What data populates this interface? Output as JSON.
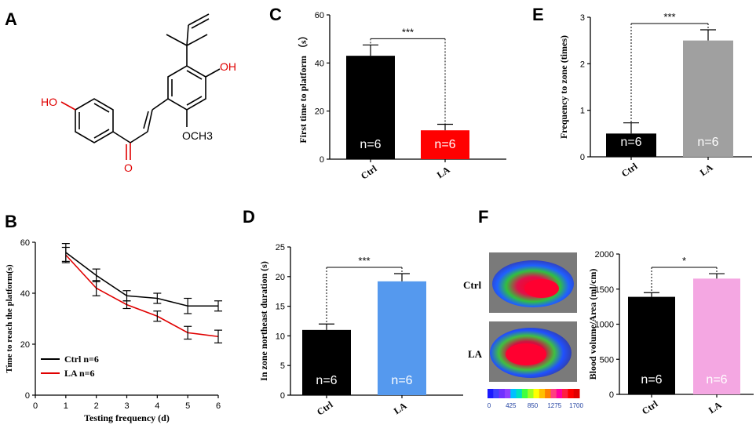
{
  "panels": {
    "A": "A",
    "B": "B",
    "C": "C",
    "D": "D",
    "E": "E",
    "F": "F"
  },
  "structure": {
    "ho": "HO",
    "oh": "OH",
    "och3": "OCH3",
    "o": "O",
    "colors": {
      "bond": "#000000",
      "hetero": "#e00000"
    }
  },
  "chart_data": [
    {
      "id": "B",
      "type": "line",
      "xlabel": "Testing frequency  (d)",
      "ylabel": "Time to reach the platform(s)",
      "x": [
        1,
        2,
        3,
        4,
        5,
        6
      ],
      "xlim": [
        0,
        6
      ],
      "ylim": [
        0,
        60
      ],
      "xticks": [
        0,
        1,
        2,
        3,
        4,
        5,
        6
      ],
      "yticks": [
        0,
        20,
        40,
        60
      ],
      "legend_position": "bottom-left",
      "series": [
        {
          "name": "Ctrl n=6",
          "color": "#000000",
          "values": [
            56,
            47,
            39,
            38,
            35,
            35
          ],
          "errors": [
            3.5,
            2.5,
            2,
            2,
            3,
            2
          ]
        },
        {
          "name": "LA    n=6",
          "color": "#e00000",
          "values": [
            55,
            42,
            35.5,
            31,
            24.5,
            23
          ],
          "errors": [
            3,
            3,
            1.5,
            2,
            2.5,
            2.5
          ]
        }
      ]
    },
    {
      "id": "C",
      "type": "bar",
      "ylabel": "First time to platform （s）",
      "categories": [
        "Ctrl",
        "LA"
      ],
      "values": [
        43,
        12
      ],
      "errors": [
        4.5,
        2.5
      ],
      "colors": [
        "#000000",
        "#ff0000"
      ],
      "n_labels": [
        "n=6",
        "n=6"
      ],
      "ylim": [
        0,
        60
      ],
      "yticks": [
        0,
        20,
        40,
        60
      ],
      "significance": "***"
    },
    {
      "id": "D",
      "type": "bar",
      "ylabel": "In zone northeast duration (s)",
      "categories": [
        "Ctrl",
        "LA"
      ],
      "values": [
        11,
        19.2
      ],
      "errors": [
        1,
        1.3
      ],
      "colors": [
        "#000000",
        "#5599ee"
      ],
      "n_labels": [
        "n=6",
        "n=6"
      ],
      "ylim": [
        0,
        25
      ],
      "yticks": [
        0,
        5,
        10,
        15,
        20,
        25
      ],
      "significance": "***"
    },
    {
      "id": "E",
      "type": "bar",
      "ylabel": "Frequency to zone (times)",
      "categories": [
        "Ctrl",
        "LA"
      ],
      "values": [
        0.5,
        2.5
      ],
      "errors": [
        0.23,
        0.23
      ],
      "colors": [
        "#000000",
        "#a0a0a0"
      ],
      "n_labels": [
        "n=6",
        "n=6"
      ],
      "ylim": [
        0,
        3
      ],
      "yticks": [
        0,
        1,
        2,
        3
      ],
      "significance": "***"
    },
    {
      "id": "F",
      "type": "bar",
      "ylabel": "Blood volume/Area (ml/cm)",
      "categories": [
        "Ctrl",
        "LA"
      ],
      "values": [
        1390,
        1650
      ],
      "errors": [
        60,
        70
      ],
      "colors": [
        "#000000",
        "#f4a7e2"
      ],
      "n_labels": [
        "n=6",
        "n=6"
      ],
      "ylim": [
        0,
        2000
      ],
      "yticks": [
        0,
        500,
        1000,
        1500,
        2000
      ],
      "significance": "*"
    }
  ],
  "flow_images": {
    "labels": [
      "Ctrl",
      "LA"
    ],
    "scale_ticks": [
      "0",
      "425",
      "850",
      "1275",
      "1700"
    ]
  }
}
